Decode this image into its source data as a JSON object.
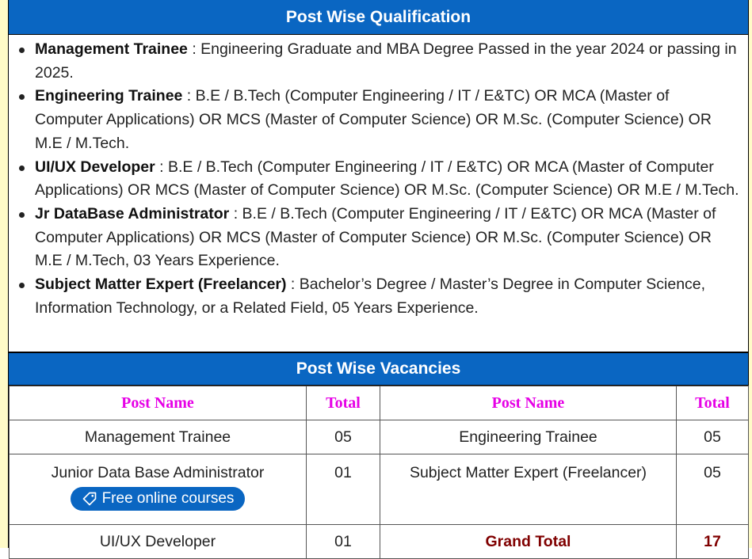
{
  "qualification": {
    "title": "Post Wise Qualification",
    "items": [
      {
        "post": "Management Trainee",
        "detail": " : Engineering Graduate and MBA Degree Passed in the year 2024 or passing in 2025."
      },
      {
        "post": "Engineering Trainee",
        "detail": " : B.E / B.Tech (Computer Engineering / IT / E&TC) OR MCA (Master of Computer Applications) OR MCS (Master of Computer Science) OR M.Sc. (Computer Science) OR M.E / M.Tech."
      },
      {
        "post": "UI/UX Developer",
        "detail": " : B.E / B.Tech (Computer Engineering / IT / E&TC) OR MCA (Master of Computer Applications) OR MCS (Master of Computer Science) OR M.Sc. (Computer Science) OR M.E / M.Tech."
      },
      {
        "post": "Jr DataBase Administrator",
        "detail": " : B.E / B.Tech (Computer Engineering / IT / E&TC) OR MCA (Master of Computer Applications) OR MCS (Master of Computer Science) OR M.Sc. (Computer Science) OR M.E / M.Tech, 03 Years Experience."
      },
      {
        "post": "Subject Matter Expert (Freelancer)",
        "detail": " : Bachelor’s Degree / Master’s Degree in Computer Science, Information Technology, or a Related Field, 05 Years Experience."
      }
    ]
  },
  "vacancies": {
    "title": "Post Wise Vacancies",
    "headers": [
      "Post Name",
      "Total",
      "Post Name",
      "Total"
    ],
    "rows": [
      [
        "Management Trainee",
        "05",
        "Engineering Trainee",
        "05"
      ],
      [
        "Junior Data Base Administrator",
        "01",
        "Subject Matter Expert (Freelancer)",
        "05"
      ],
      [
        "UI/UX Developer",
        "01",
        "Grand Total",
        "17"
      ]
    ],
    "badge_label": "Free online courses",
    "badge_icon": "tag-icon"
  },
  "colors": {
    "header_bg": "#0a66c2",
    "column_header": "#e600e6",
    "grand_total": "#800000",
    "side_bg": "#fffbc8"
  }
}
